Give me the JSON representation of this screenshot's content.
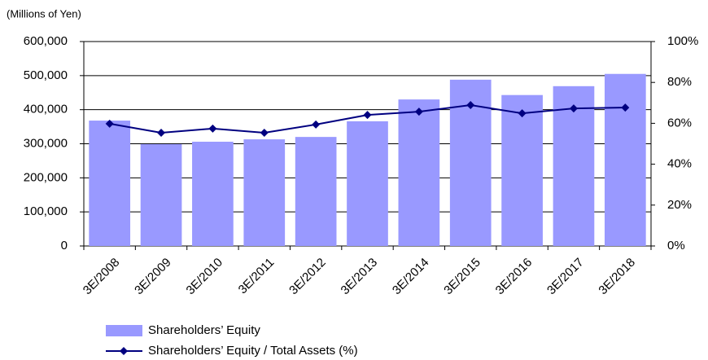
{
  "chart_data": {
    "type": "bar-line",
    "y_unit_label": "(Millions of Yen)",
    "categories": [
      "3E/2008",
      "3E/2009",
      "3E/2010",
      "3E/2011",
      "3E/2012",
      "3E/2013",
      "3E/2014",
      "3E/2015",
      "3E/2016",
      "3E/2017",
      "3E/2018"
    ],
    "series": [
      {
        "name": "Shareholders’ Equity",
        "type": "bar",
        "color": "#9999ff",
        "axis": "y",
        "values": [
          368000,
          299000,
          306000,
          313000,
          320000,
          366000,
          430000,
          488000,
          443000,
          469000,
          505000
        ]
      },
      {
        "name": "Shareholders’ Equity / Total Assets (%)",
        "type": "line",
        "color": "#000080",
        "axis": "y2",
        "values": [
          59.8,
          55.4,
          57.4,
          55.4,
          59.4,
          64.1,
          65.7,
          68.9,
          64.9,
          67.3,
          67.7
        ]
      }
    ],
    "ylim": [
      0,
      600000
    ],
    "yticks": [
      0,
      {
        "value": 100000,
        "label": "100,000"
      },
      {
        "value": 200000,
        "label": "200,000"
      },
      {
        "value": 300000,
        "label": "300,000"
      },
      {
        "value": 400000,
        "label": "400,000"
      },
      {
        "value": 500000,
        "label": "500,000"
      },
      {
        "value": 600000,
        "label": "600,000"
      }
    ],
    "y2lim": [
      0,
      100
    ],
    "y2ticks": [
      {
        "value": 0,
        "label": "0%"
      },
      {
        "value": 20,
        "label": "20%"
      },
      {
        "value": 40,
        "label": "40%"
      },
      {
        "value": 60,
        "label": "60%"
      },
      {
        "value": 80,
        "label": "80%"
      },
      {
        "value": 100,
        "label": "100%"
      }
    ],
    "grid": true,
    "legend": "bottom-left"
  }
}
